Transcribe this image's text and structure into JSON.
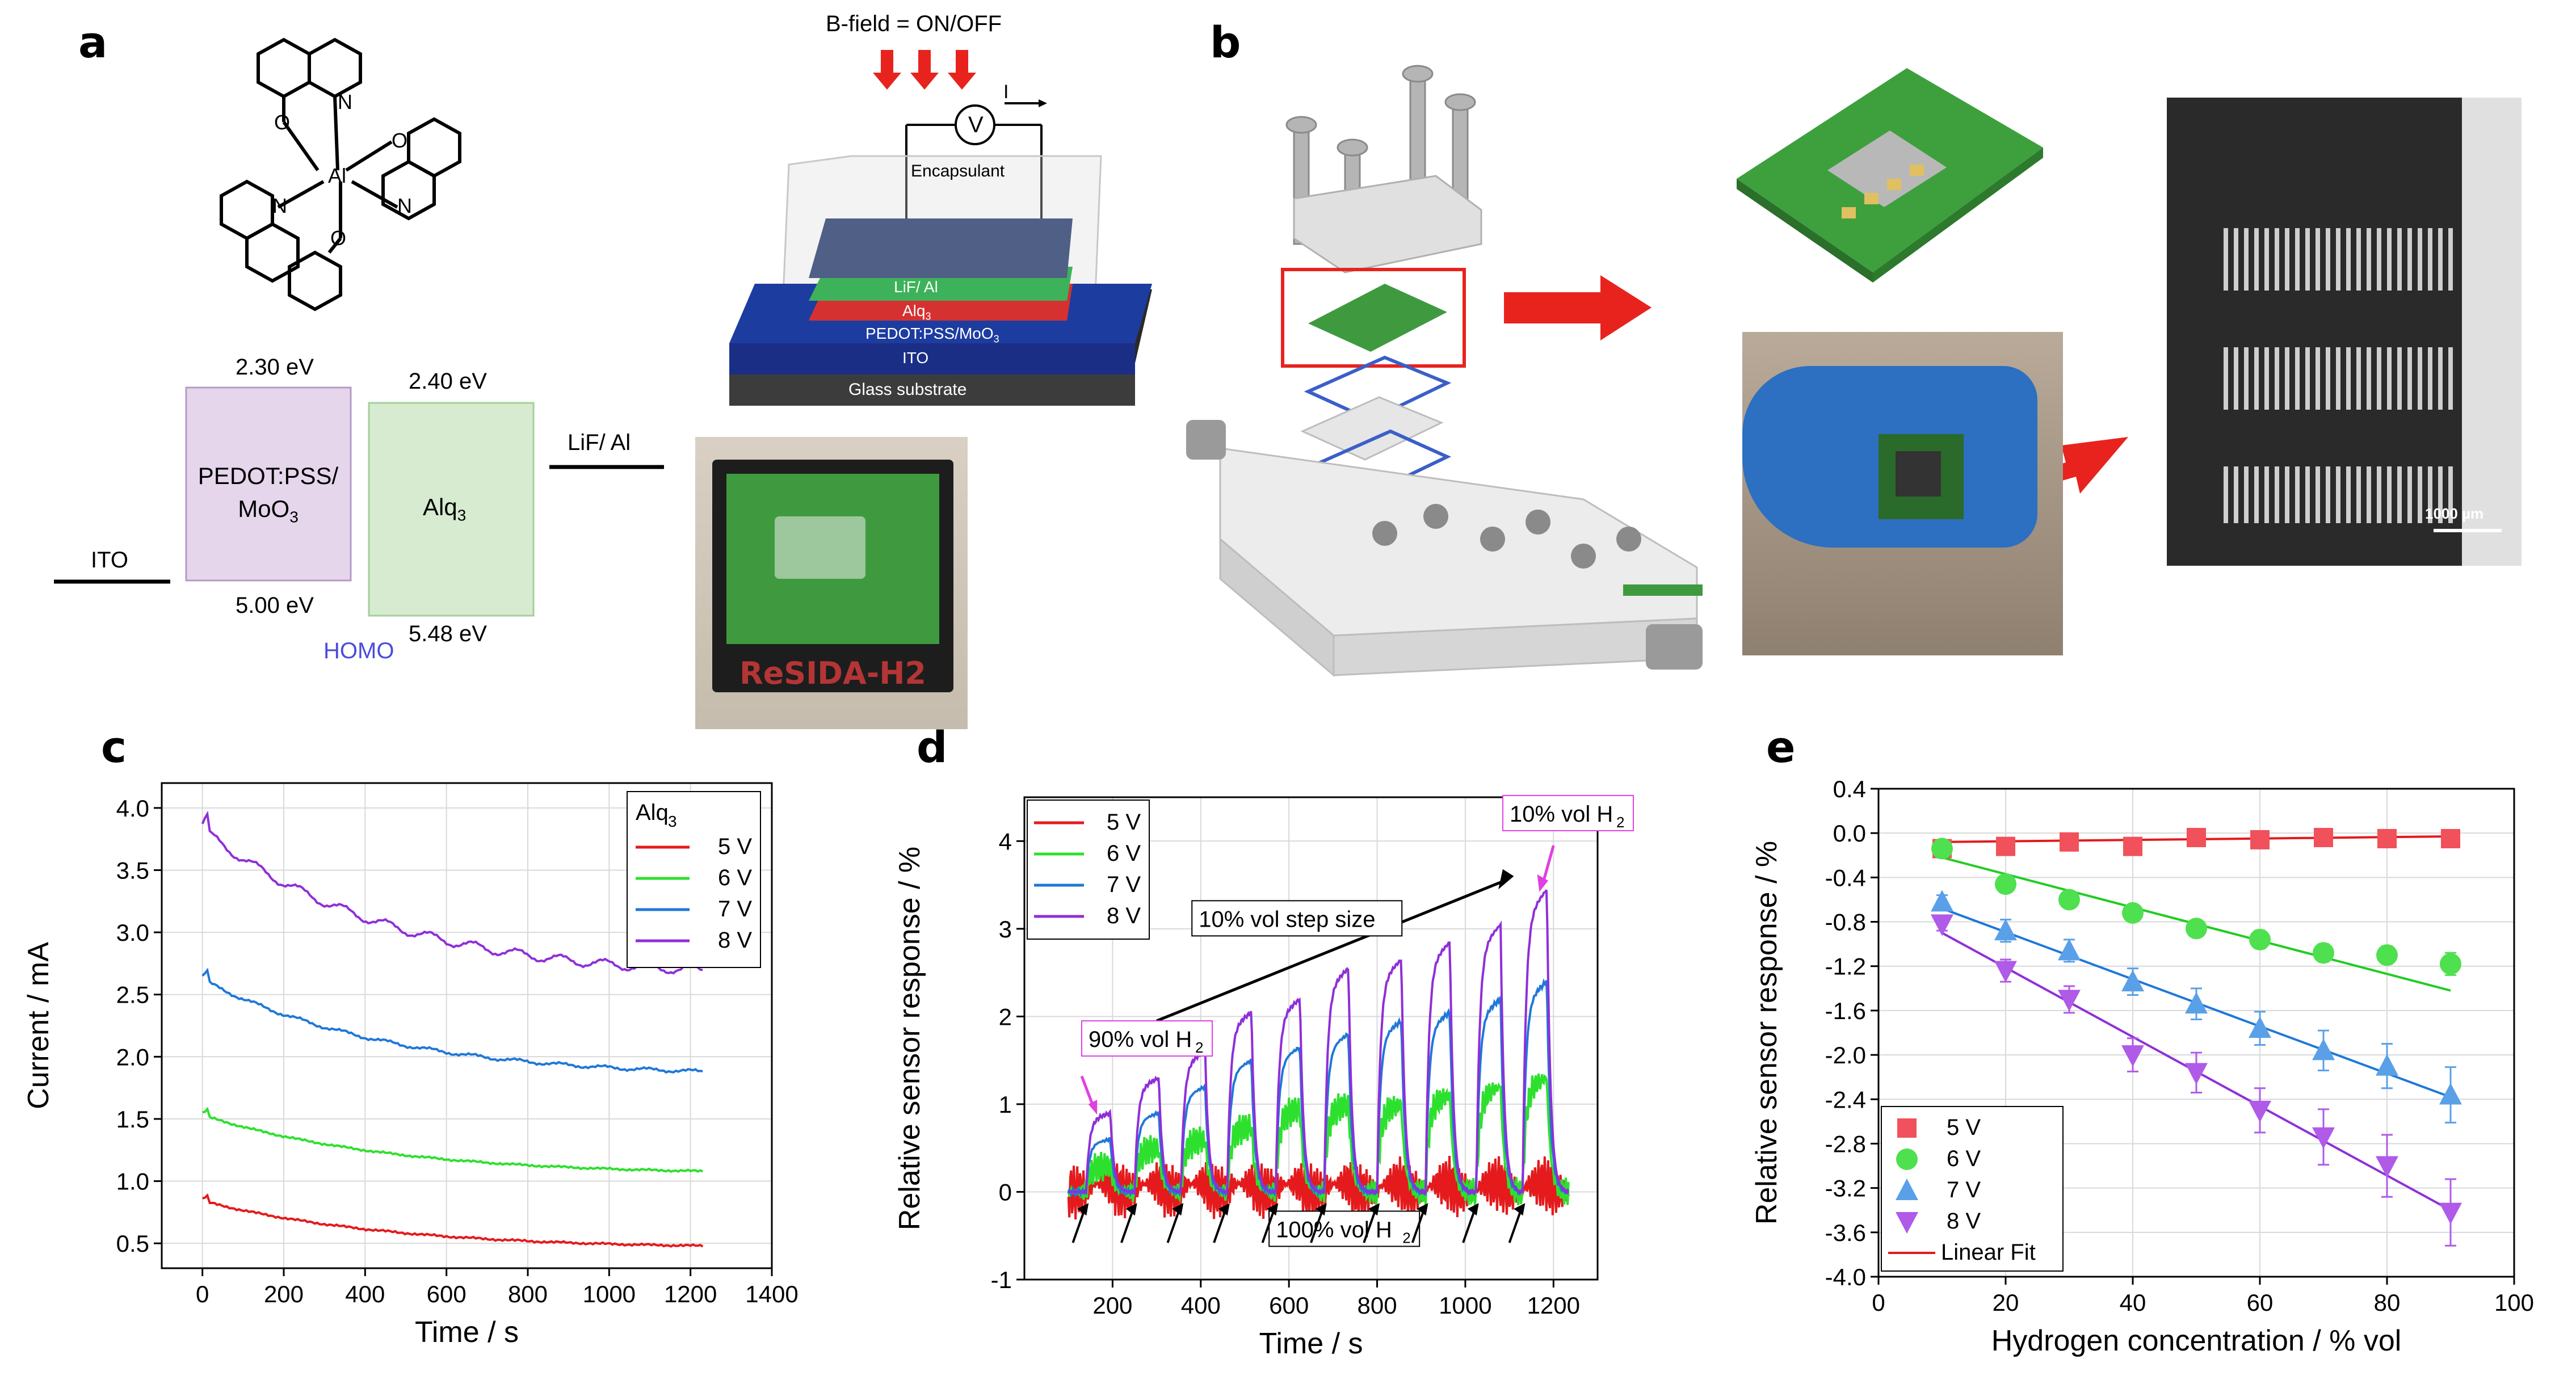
{
  "panels": {
    "a": "a",
    "b": "b",
    "c": "c",
    "d": "d",
    "e": "e"
  },
  "panel_a": {
    "energy": {
      "pedot_lumo": "2.30 eV",
      "pedot_homo": "5.00 eV",
      "pedot_label_1": "PEDOT:PSS/",
      "pedot_label_2": "MoO",
      "pedot_label_2_sub": "3",
      "alq_lumo": "2.40 eV",
      "alq_homo": "5.48 eV",
      "alq_label": "Alq",
      "alq_label_sub": "3",
      "ito": "ITO",
      "lif": "LiF/ Al",
      "homo": "HOMO"
    },
    "device": {
      "bfield": "B-field = ON/OFF",
      "voltmeter": "V",
      "current": "I",
      "encapsulant": "Encapsulant",
      "layer_lif": "LiF/ Al",
      "layer_alq": "Alq",
      "layer_alq_sub": "3",
      "layer_pedot": "PEDOT:PSS/MoO",
      "layer_pedot_sub": "3",
      "layer_ito": "ITO",
      "layer_glass": "Glass substrate"
    },
    "photo_label": "ReSIDA-H2",
    "colors": {
      "pedot": "#e5d6ec",
      "alq": "#d6ebd0",
      "homo": "#4b4bdc",
      "arrow": "#e8231e"
    }
  },
  "panel_b": {
    "scale_bar": "1000 µm"
  },
  "chart_data": [
    {
      "id": "c",
      "type": "line",
      "xlabel": "Time / s",
      "ylabel": "Current / mA",
      "xlim": [
        -100,
        1400
      ],
      "ylim": [
        0.3,
        4.2
      ],
      "xticks": [
        0,
        200,
        400,
        600,
        800,
        1000,
        1200,
        1400
      ],
      "yticks": [
        0.5,
        1.0,
        1.5,
        2.0,
        2.5,
        3.0,
        3.5,
        4.0
      ],
      "grid": true,
      "legend_title": "Alq",
      "legend_title_sub": "3",
      "legend_position": "top-right",
      "series": [
        {
          "name": "5 V",
          "color": "#e41a1c",
          "start": 0.88,
          "end": 0.44
        },
        {
          "name": "6 V",
          "color": "#2ee02e",
          "start": 1.58,
          "end": 1.03
        },
        {
          "name": "7 V",
          "color": "#1f78d8",
          "start": 2.7,
          "end": 1.8
        },
        {
          "name": "8 V",
          "color": "#8f2fd8",
          "start": 3.95,
          "end": 2.57
        }
      ]
    },
    {
      "id": "d",
      "type": "line",
      "xlabel": "Time / s",
      "ylabel": "Relative sensor response / %",
      "xlim": [
        0,
        1300
      ],
      "ylim": [
        -1,
        4.5
      ],
      "xticks": [
        200,
        400,
        600,
        800,
        1000,
        1200
      ],
      "yticks": [
        -1,
        0,
        1,
        2,
        3,
        4
      ],
      "grid": true,
      "legend_position": "top-left",
      "series": [
        {
          "name": "5 V",
          "color": "#e41a1c"
        },
        {
          "name": "6 V",
          "color": "#2ee02e"
        },
        {
          "name": "7 V",
          "color": "#1f78d8"
        },
        {
          "name": "8 V",
          "color": "#8f2fd8"
        }
      ],
      "pulses": {
        "start_times": [
          140,
          250,
          355,
          460,
          570,
          680,
          800,
          910,
          1025,
          1130
        ],
        "peak_8v": [
          0.9,
          1.3,
          1.6,
          2.05,
          2.2,
          2.55,
          2.65,
          2.85,
          3.05,
          3.45
        ],
        "peak_7v": [
          0.6,
          0.9,
          1.2,
          1.5,
          1.65,
          1.8,
          1.95,
          2.05,
          2.2,
          2.4
        ],
        "peak_6v": [
          0.3,
          0.5,
          0.6,
          0.75,
          0.95,
          1.0,
          1.0,
          1.1,
          1.2,
          1.3
        ]
      },
      "annotations": {
        "h90": "90% vol H",
        "h90_sub": "2",
        "h10": "10% vol H",
        "h10_sub": "2",
        "h100": "100% vol H",
        "h100_sub": "2",
        "step": "10% vol step size"
      }
    },
    {
      "id": "e",
      "type": "scatter",
      "xlabel": "Hydrogen concentration / % vol",
      "ylabel": "Relative sensor response / %",
      "xlim": [
        0,
        100
      ],
      "ylim": [
        -4.0,
        0.4
      ],
      "xticks": [
        0,
        20,
        40,
        60,
        80,
        100
      ],
      "yticks": [
        0.4,
        0.0,
        -0.4,
        -0.8,
        -1.2,
        -1.6,
        -2.0,
        -2.4,
        -2.8,
        -3.2,
        -3.6,
        -4.0
      ],
      "grid": true,
      "legend_position": "bottom-left",
      "x": [
        10,
        20,
        30,
        40,
        50,
        60,
        70,
        80,
        90
      ],
      "series": [
        {
          "name": "5 V",
          "color": "#f0515a",
          "marker": "square",
          "values": [
            -0.14,
            -0.12,
            -0.08,
            -0.12,
            -0.04,
            -0.06,
            -0.04,
            -0.05,
            -0.05
          ],
          "err": [
            0.04,
            0.04,
            0.04,
            0.04,
            0.03,
            0.03,
            0.03,
            0.03,
            0.03
          ],
          "fit": [
            -0.08,
            -0.03
          ]
        },
        {
          "name": "6 V",
          "color": "#4ee04e",
          "marker": "circle",
          "values": [
            -0.14,
            -0.46,
            -0.6,
            -0.72,
            -0.86,
            -0.96,
            -1.08,
            -1.1,
            -1.18
          ],
          "err": [
            0.04,
            0.05,
            0.05,
            0.05,
            0.06,
            0.08,
            0.08,
            0.08,
            0.1
          ],
          "fit": [
            -0.22,
            -1.42
          ]
        },
        {
          "name": "7 V",
          "color": "#5aa0e8",
          "marker": "triangle-up",
          "values": [
            -0.62,
            -0.88,
            -1.06,
            -1.34,
            -1.54,
            -1.76,
            -1.96,
            -2.1,
            -2.36
          ],
          "err": [
            0.06,
            0.1,
            0.1,
            0.12,
            0.14,
            0.15,
            0.18,
            0.2,
            0.25
          ],
          "fit": [
            -0.68,
            -2.38
          ]
        },
        {
          "name": "8 V",
          "color": "#b05ae8",
          "marker": "triangle-down",
          "values": [
            -0.82,
            -1.24,
            -1.5,
            -2.0,
            -2.16,
            -2.5,
            -2.74,
            -3.0,
            -3.42
          ],
          "err": [
            0.06,
            0.1,
            0.12,
            0.15,
            0.18,
            0.2,
            0.25,
            0.28,
            0.3
          ],
          "fit": [
            -0.9,
            -3.4
          ]
        }
      ],
      "fit_label": "Linear Fit",
      "fit_color": "#e41a1c"
    }
  ]
}
